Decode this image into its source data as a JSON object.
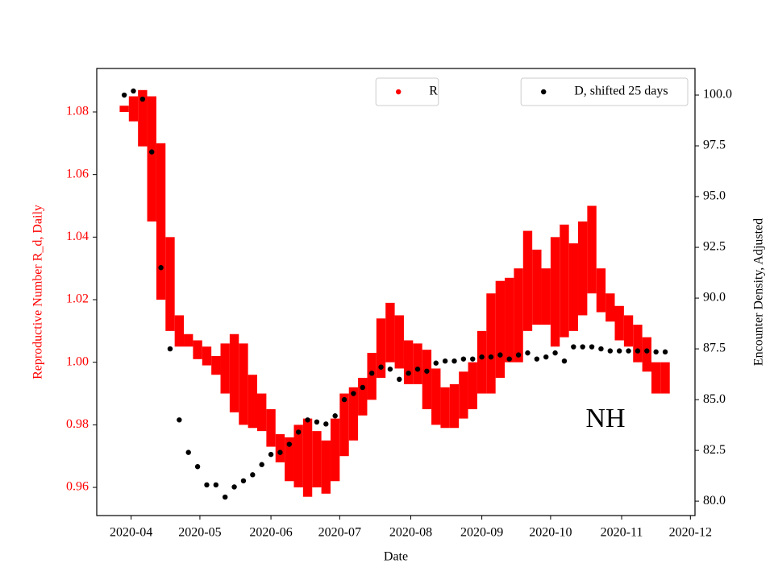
{
  "chart_data": {
    "type": "errorbar_scatter",
    "xlabel": "Date",
    "ylabel": "Reproductive Number R_d, Daily",
    "y2label": "Encounter Density, Adjusted",
    "ylabel_color": "#ff0000",
    "annotation": "NH",
    "x": [
      "2020-03-29",
      "2020-04-02",
      "2020-04-06",
      "2020-04-10",
      "2020-04-14",
      "2020-04-18",
      "2020-04-22",
      "2020-04-26",
      "2020-04-30",
      "2020-05-04",
      "2020-05-08",
      "2020-05-12",
      "2020-05-16",
      "2020-05-20",
      "2020-05-24",
      "2020-05-28",
      "2020-06-01",
      "2020-06-05",
      "2020-06-09",
      "2020-06-13",
      "2020-06-17",
      "2020-06-21",
      "2020-06-25",
      "2020-06-29",
      "2020-07-03",
      "2020-07-07",
      "2020-07-11",
      "2020-07-15",
      "2020-07-19",
      "2020-07-23",
      "2020-07-27",
      "2020-07-31",
      "2020-08-04",
      "2020-08-08",
      "2020-08-12",
      "2020-08-16",
      "2020-08-20",
      "2020-08-24",
      "2020-08-28",
      "2020-09-01",
      "2020-09-05",
      "2020-09-09",
      "2020-09-13",
      "2020-09-17",
      "2020-09-21",
      "2020-09-25",
      "2020-09-29",
      "2020-10-03",
      "2020-10-07",
      "2020-10-11",
      "2020-10-15",
      "2020-10-19",
      "2020-10-23",
      "2020-10-27",
      "2020-10-31",
      "2020-11-04",
      "2020-11-08",
      "2020-11-12",
      "2020-11-16",
      "2020-11-20"
    ],
    "series": [
      {
        "name": "R",
        "color": "#ff0000",
        "axis": "y",
        "legend": "upper center",
        "values": [
          1.081,
          1.081,
          1.078,
          1.065,
          1.045,
          1.025,
          1.01,
          1.007,
          1.004,
          1.002,
          0.999,
          0.998,
          0.9965,
          0.993,
          0.9875,
          0.984,
          0.979,
          0.9725,
          0.969,
          0.97,
          0.9695,
          0.969,
          0.9665,
          0.972,
          0.98,
          0.9835,
          0.989,
          0.9955,
          1.0045,
          1.0095,
          1.0065,
          1.0,
          0.9995,
          0.9945,
          0.989,
          0.9855,
          0.986,
          0.9895,
          0.9925,
          1.0,
          1.006,
          1.0105,
          1.0135,
          1.015,
          1.026,
          1.024,
          1.021,
          1.0225,
          1.026,
          1.024,
          1.03,
          1.036,
          1.023,
          1.0175,
          1.0125,
          1.01,
          1.006,
          1.0025,
          0.995,
          0.995
        ],
        "errors": [
          0.001,
          0.004,
          0.009,
          0.02,
          0.025,
          0.015,
          0.005,
          0.002,
          0.003,
          0.003,
          0.003,
          0.008,
          0.0125,
          0.013,
          0.0085,
          0.006,
          0.006,
          0.0045,
          0.007,
          0.01,
          0.0125,
          0.009,
          0.0085,
          0.01,
          0.01,
          0.0085,
          0.006,
          0.0075,
          0.0095,
          0.0095,
          0.0085,
          0.007,
          0.0065,
          0.0095,
          0.009,
          0.0065,
          0.007,
          0.0075,
          0.0075,
          0.01,
          0.016,
          0.0155,
          0.0135,
          0.015,
          0.016,
          0.012,
          0.009,
          0.0175,
          0.018,
          0.014,
          0.015,
          0.014,
          0.007,
          0.0045,
          0.0055,
          0.005,
          0.006,
          0.0055,
          0.005,
          0.005
        ]
      },
      {
        "name": "D, shifted 25 days",
        "color": "#000000",
        "axis": "y2",
        "legend": "upper right",
        "values": [
          100.0,
          100.2,
          99.8,
          97.2,
          91.5,
          87.5,
          84.0,
          82.4,
          81.7,
          80.8,
          80.8,
          80.2,
          80.7,
          81.0,
          81.3,
          81.8,
          82.3,
          82.4,
          82.8,
          83.4,
          84.0,
          83.9,
          83.8,
          84.2,
          85.0,
          85.3,
          85.6,
          86.3,
          86.6,
          86.5,
          86.0,
          86.3,
          86.5,
          86.4,
          86.8,
          86.9,
          86.9,
          87.0,
          87.0,
          87.1,
          87.1,
          87.2,
          87.0,
          87.2,
          87.3,
          87.0,
          87.1,
          87.3,
          86.9,
          87.6,
          87.6,
          87.6,
          87.5,
          87.4,
          87.4,
          87.4,
          87.4,
          87.4,
          87.35,
          87.35
        ]
      }
    ],
    "xlim": [
      "2020-03-17",
      "2020-12-03"
    ],
    "xticks": [
      {
        "value": "2020-04-01",
        "label": "2020-04"
      },
      {
        "value": "2020-05-01",
        "label": "2020-05"
      },
      {
        "value": "2020-06-01",
        "label": "2020-06"
      },
      {
        "value": "2020-07-01",
        "label": "2020-07"
      },
      {
        "value": "2020-08-01",
        "label": "2020-08"
      },
      {
        "value": "2020-09-01",
        "label": "2020-09"
      },
      {
        "value": "2020-10-01",
        "label": "2020-10"
      },
      {
        "value": "2020-11-01",
        "label": "2020-11"
      },
      {
        "value": "2020-12-01",
        "label": "2020-12"
      }
    ],
    "ylim": [
      0.951,
      1.0939
    ],
    "yticks": [
      0.96,
      0.98,
      {
        "value": 1,
        "label": "1.00"
      },
      1.02,
      1.04,
      1.06,
      1.08
    ],
    "y2lim": [
      79.29,
      101.31
    ],
    "y2ticks": [
      {
        "value": 80,
        "label": "80.0"
      },
      82.5,
      {
        "value": 85,
        "label": "85.0"
      },
      87.5,
      {
        "value": 90,
        "label": "90.0"
      },
      92.5,
      {
        "value": 95,
        "label": "95.0"
      },
      97.5,
      {
        "value": 100,
        "label": "100.0"
      }
    ],
    "grid": false
  }
}
